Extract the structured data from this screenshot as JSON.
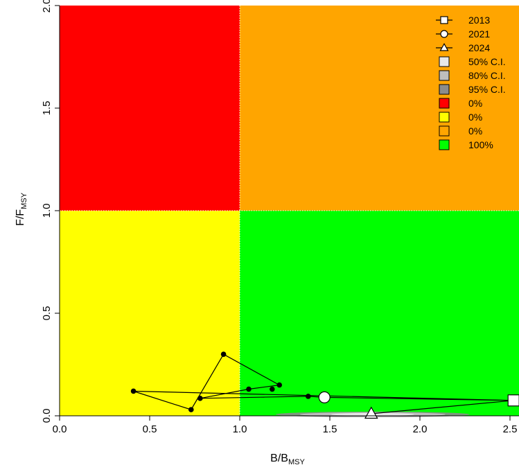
{
  "chart_data": {
    "type": "scatter",
    "title": "",
    "xlabel": {
      "main": "B/B",
      "sub": "MSY"
    },
    "ylabel": {
      "main": "F/F",
      "sub": "MSY"
    },
    "xlim": [
      0,
      2.55
    ],
    "ylim": [
      0,
      2.0
    ],
    "x_ticks": [
      "0.0",
      "0.5",
      "1.0",
      "1.5",
      "2.0",
      "2.5"
    ],
    "y_ticks": [
      "0.0",
      "0.5",
      "1.0",
      "1.5",
      "2.0"
    ],
    "quadrants": [
      {
        "name": "overfished-overfishing",
        "x": [
          0,
          1
        ],
        "y": [
          1,
          2
        ],
        "color": "#ff0000"
      },
      {
        "name": "healthy-overfishing",
        "x": [
          1,
          2.55
        ],
        "y": [
          1,
          2
        ],
        "color": "#ffa500"
      },
      {
        "name": "overfished",
        "x": [
          0,
          1
        ],
        "y": [
          0,
          1
        ],
        "color": "#ffff00"
      },
      {
        "name": "healthy",
        "x": [
          1,
          2.55
        ],
        "y": [
          0,
          1
        ],
        "color": "#00ff00"
      }
    ],
    "trajectory": {
      "x": [
        2.52,
        0.41,
        0.73,
        0.91,
        1.22,
        1.05,
        0.78,
        1.38,
        1.47
      ],
      "y": [
        0.075,
        0.12,
        0.03,
        0.3,
        0.15,
        0.13,
        0.085,
        0.095,
        0.09
      ]
    },
    "extra_points": [
      {
        "x": 1.18,
        "y": 0.13
      }
    ],
    "projection": {
      "x": [
        1.47,
        2.52,
        1.73
      ],
      "y": [
        0.09,
        0.075,
        0.01
      ]
    },
    "markers": [
      {
        "label": "2013",
        "shape": "square",
        "x": 2.52,
        "y": 0.075
      },
      {
        "label": "2021",
        "shape": "circle",
        "x": 1.47,
        "y": 0.09
      },
      {
        "label": "2024",
        "shape": "triangle",
        "x": 1.73,
        "y": 0.01
      }
    ],
    "legend": {
      "position": "top-right",
      "items": [
        {
          "label": "2013",
          "kind": "line-square"
        },
        {
          "label": "2021",
          "kind": "line-circle"
        },
        {
          "label": "2024",
          "kind": "line-triangle"
        },
        {
          "label": "50% C.I.",
          "kind": "box",
          "color": "#e8e8e8"
        },
        {
          "label": "80% C.I.",
          "kind": "box",
          "color": "#bebebe"
        },
        {
          "label": "95% C.I.",
          "kind": "box",
          "color": "#8c8c8c"
        },
        {
          "label": "0%",
          "kind": "box",
          "color": "#ff0000"
        },
        {
          "label": "0%",
          "kind": "box",
          "color": "#ffff00"
        },
        {
          "label": "0%",
          "kind": "box",
          "color": "#ffa500"
        },
        {
          "label": "100%",
          "kind": "box",
          "color": "#00ff00"
        }
      ]
    }
  }
}
